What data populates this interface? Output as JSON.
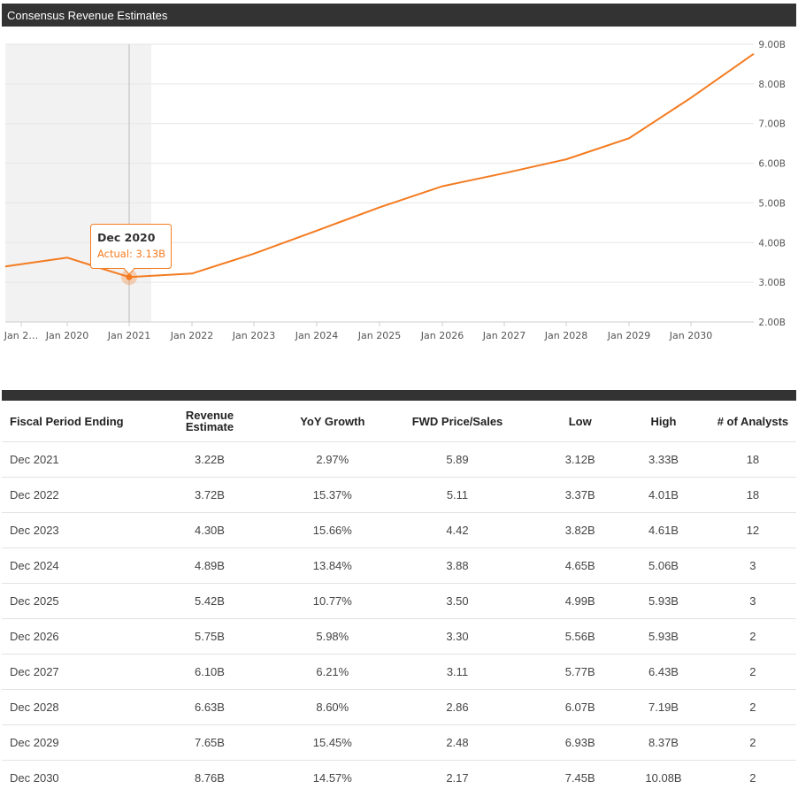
{
  "header": {
    "title": "Consensus Revenue Estimates"
  },
  "chart_data": {
    "type": "line",
    "title": "Consensus Revenue Estimates",
    "x_tick_labels": [
      "Jan 2…",
      "Jan 2020",
      "Jan 2021",
      "Jan 2022",
      "Jan 2023",
      "Jan 2024",
      "Jan 2025",
      "Jan 2026",
      "Jan 2027",
      "Jan 2028",
      "Jan 2029",
      "Jan 2030"
    ],
    "y_tick_labels": [
      "2.00B",
      "3.00B",
      "4.00B",
      "5.00B",
      "6.00B",
      "7.00B",
      "8.00B",
      "9.00B"
    ],
    "ylim": [
      2.0,
      9.0
    ],
    "y_unit": "B",
    "grid": true,
    "line_color": "#f47b20",
    "x": [
      "Dec 2018",
      "Dec 2019",
      "Dec 2020",
      "Dec 2021",
      "Dec 2022",
      "Dec 2023",
      "Dec 2024",
      "Dec 2025",
      "Dec 2026",
      "Dec 2027",
      "Dec 2028",
      "Dec 2029",
      "Dec 2030"
    ],
    "series": [
      {
        "values": [
          3.4,
          3.62,
          3.13,
          3.22,
          3.72,
          4.3,
          4.89,
          5.42,
          5.75,
          6.1,
          6.63,
          7.65,
          8.76
        ]
      }
    ],
    "actual_through": "Dec 2020",
    "tooltip": {
      "title": "Dec 2020",
      "label": "Actual: 3.13B"
    }
  },
  "table": {
    "columns": [
      "Fiscal Period Ending",
      "Revenue Estimate",
      "YoY Growth",
      "FWD Price/Sales",
      "Low",
      "High",
      "# of Analysts"
    ],
    "rows": [
      [
        "Dec 2021",
        "3.22B",
        "2.97%",
        "5.89",
        "3.12B",
        "3.33B",
        "18"
      ],
      [
        "Dec 2022",
        "3.72B",
        "15.37%",
        "5.11",
        "3.37B",
        "4.01B",
        "18"
      ],
      [
        "Dec 2023",
        "4.30B",
        "15.66%",
        "4.42",
        "3.82B",
        "4.61B",
        "12"
      ],
      [
        "Dec 2024",
        "4.89B",
        "13.84%",
        "3.88",
        "4.65B",
        "5.06B",
        "3"
      ],
      [
        "Dec 2025",
        "5.42B",
        "10.77%",
        "3.50",
        "4.99B",
        "5.93B",
        "3"
      ],
      [
        "Dec 2026",
        "5.75B",
        "5.98%",
        "3.30",
        "5.56B",
        "5.93B",
        "2"
      ],
      [
        "Dec 2027",
        "6.10B",
        "6.21%",
        "3.11",
        "5.77B",
        "6.43B",
        "2"
      ],
      [
        "Dec 2028",
        "6.63B",
        "8.60%",
        "2.86",
        "6.07B",
        "7.19B",
        "2"
      ],
      [
        "Dec 2029",
        "7.65B",
        "15.45%",
        "2.48",
        "6.93B",
        "8.37B",
        "2"
      ],
      [
        "Dec 2030",
        "8.76B",
        "14.57%",
        "2.17",
        "7.45B",
        "10.08B",
        "2"
      ]
    ]
  }
}
